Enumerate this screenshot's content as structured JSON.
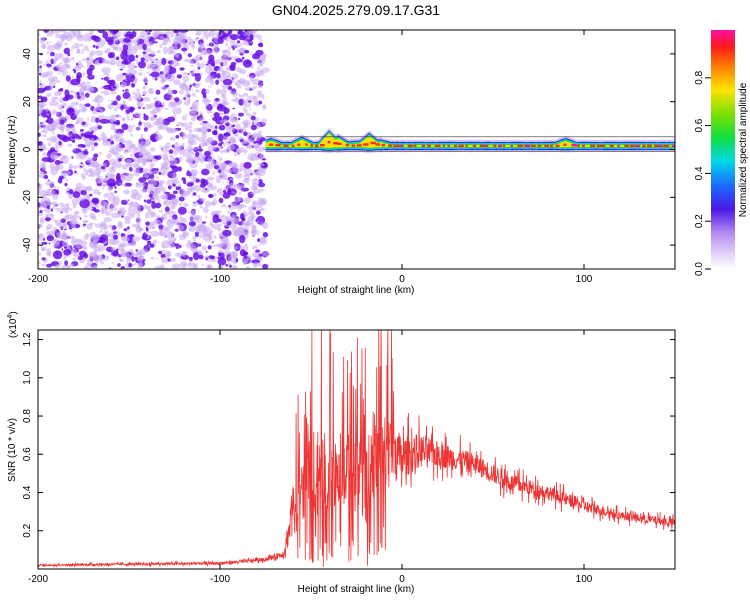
{
  "title": "GN04.2025.279.09.17.G31",
  "colors": {
    "snr_line": "#ee3333",
    "scatter_dark": "#6a10e8",
    "scatter_light": "#c9a8f3"
  },
  "chart_data": [
    {
      "type": "heatmap",
      "name": "spectrogram",
      "xlabel": "Height of straight line (km)",
      "ylabel": "Frequency (Hz)",
      "xlim": [
        -200,
        150
      ],
      "ylim": [
        -50,
        50
      ],
      "x_ticks": [
        -200,
        -100,
        0,
        100
      ],
      "x_tick_labels": [
        "-200",
        "-100",
        "0",
        "100"
      ],
      "y_ticks": [
        -40,
        -20,
        0,
        20,
        40
      ],
      "y_tick_labels": [
        "-40",
        "-20",
        "0",
        "20",
        "40"
      ],
      "noise_region_x": [
        -200,
        -75
      ],
      "signal_start_x": -75,
      "signal_frequency_hz": 1.5,
      "signal_perturbations": [
        {
          "x": -72,
          "dy": 1.5
        },
        {
          "x": -55,
          "dy": 2.0
        },
        {
          "x": -40,
          "dy": 4.5
        },
        {
          "x": -35,
          "dy": 2.5
        },
        {
          "x": -25,
          "dy": 0.5
        },
        {
          "x": -18,
          "dy": 3.5
        },
        {
          "x": -12,
          "dy": 1.0
        },
        {
          "x": 0,
          "dy": 0.0
        },
        {
          "x": 90,
          "dy": 1.5
        }
      ],
      "colorbar": {
        "label": "Normalized spectral amplitude",
        "range": [
          0.0,
          1.0
        ],
        "ticks": [
          0.0,
          0.2,
          0.4,
          0.6,
          0.8
        ],
        "tick_labels": [
          "0.0",
          "0.2",
          "0.4",
          "0.6",
          "0.8"
        ]
      }
    },
    {
      "type": "line",
      "name": "snr",
      "xlabel": "Height of straight line (km)",
      "ylabel": "SNR (10 * v/v)",
      "y_multiplier_base": "(x10",
      "y_multiplier_exp": "4",
      "xlim": [
        -200,
        150
      ],
      "ylim": [
        0,
        1.25
      ],
      "x_ticks": [
        -200,
        -100,
        0,
        100
      ],
      "x_tick_labels": [
        "-200",
        "-100",
        "0",
        "100"
      ],
      "y_ticks": [
        0.2,
        0.4,
        0.6,
        0.8,
        1.0,
        1.2
      ],
      "y_tick_labels": [
        "0.2",
        "0.4",
        "0.6",
        "0.8",
        "1.0",
        "1.2"
      ],
      "envelope": {
        "x": [
          -200,
          -100,
          -75,
          -65,
          -60,
          -50,
          -40,
          -30,
          -20,
          -10,
          0,
          10,
          20,
          40,
          60,
          80,
          100,
          120,
          150
        ],
        "base": [
          0.02,
          0.03,
          0.05,
          0.08,
          0.3,
          0.5,
          0.5,
          0.5,
          0.45,
          0.65,
          0.58,
          0.62,
          0.6,
          0.55,
          0.45,
          0.4,
          0.33,
          0.28,
          0.24
        ],
        "amp": [
          0.01,
          0.015,
          0.02,
          0.04,
          0.3,
          0.45,
          0.55,
          0.45,
          0.5,
          0.5,
          0.25,
          0.2,
          0.15,
          0.12,
          0.1,
          0.08,
          0.07,
          0.05,
          0.05
        ]
      }
    }
  ]
}
